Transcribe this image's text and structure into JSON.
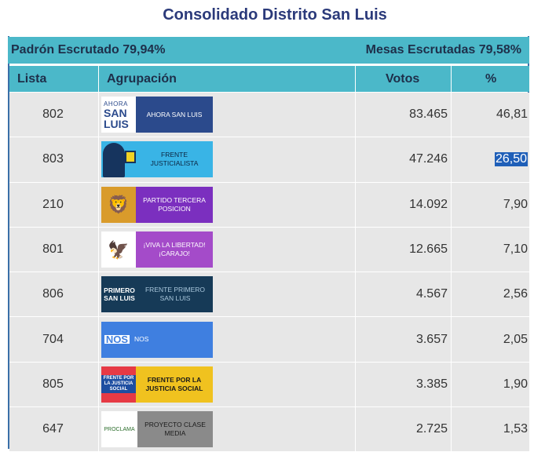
{
  "title": "Consolidado Distrito San Luis",
  "summary": {
    "padron": "Padrón Escrutado 79,94%",
    "mesas": "Mesas Escrutadas 79,58%"
  },
  "headers": {
    "lista": "Lista",
    "agrupacion": "Agrupación",
    "votos": "Votos",
    "pct": "%"
  },
  "rows": [
    {
      "lista": "802",
      "logo_emblem": [
        "AHORA",
        "SAN",
        "LUIS"
      ],
      "logo_text": "AHORA SAN LUIS",
      "votos": "83.465",
      "pct": "46,81"
    },
    {
      "lista": "803",
      "logo_text": "FRENTE JUSTICIALISTA",
      "votos": "47.246",
      "pct": "26,50"
    },
    {
      "lista": "210",
      "logo_emblem": "lion-icon",
      "logo_text": "PARTIDO TERCERA POSICION",
      "votos": "14.092",
      "pct": "7,90"
    },
    {
      "lista": "801",
      "logo_emblem": "winged-lion-icon",
      "logo_text": "¡VIVA LA LIBERTAD! ¡CARAJO!",
      "votos": "12.665",
      "pct": "7,10"
    },
    {
      "lista": "806",
      "logo_emblem": [
        "PRIMERO",
        "SAN LUIS"
      ],
      "logo_text": "FRENTE PRIMERO SAN LUIS",
      "votos": "4.567",
      "pct": "2,56"
    },
    {
      "lista": "704",
      "logo_emblem": "NOS",
      "logo_text": "NOS",
      "votos": "3.657",
      "pct": "2,05"
    },
    {
      "lista": "805",
      "logo_emblem": "FRENTE POR LA JUSTICIA SOCIAL",
      "logo_text": "FRENTE POR LA JUSTICIA SOCIAL",
      "votos": "3.385",
      "pct": "1,90"
    },
    {
      "lista": "647",
      "logo_emblem": "proclama",
      "logo_text": "PROYECTO CLASE MEDIA",
      "votos": "2.725",
      "pct": "1,53"
    }
  ],
  "colors": {
    "header_bg": "#4bb8c9",
    "row_bg": "#e7e7e7",
    "title_color": "#2b3a7a",
    "selection": "#1f5fb8"
  }
}
